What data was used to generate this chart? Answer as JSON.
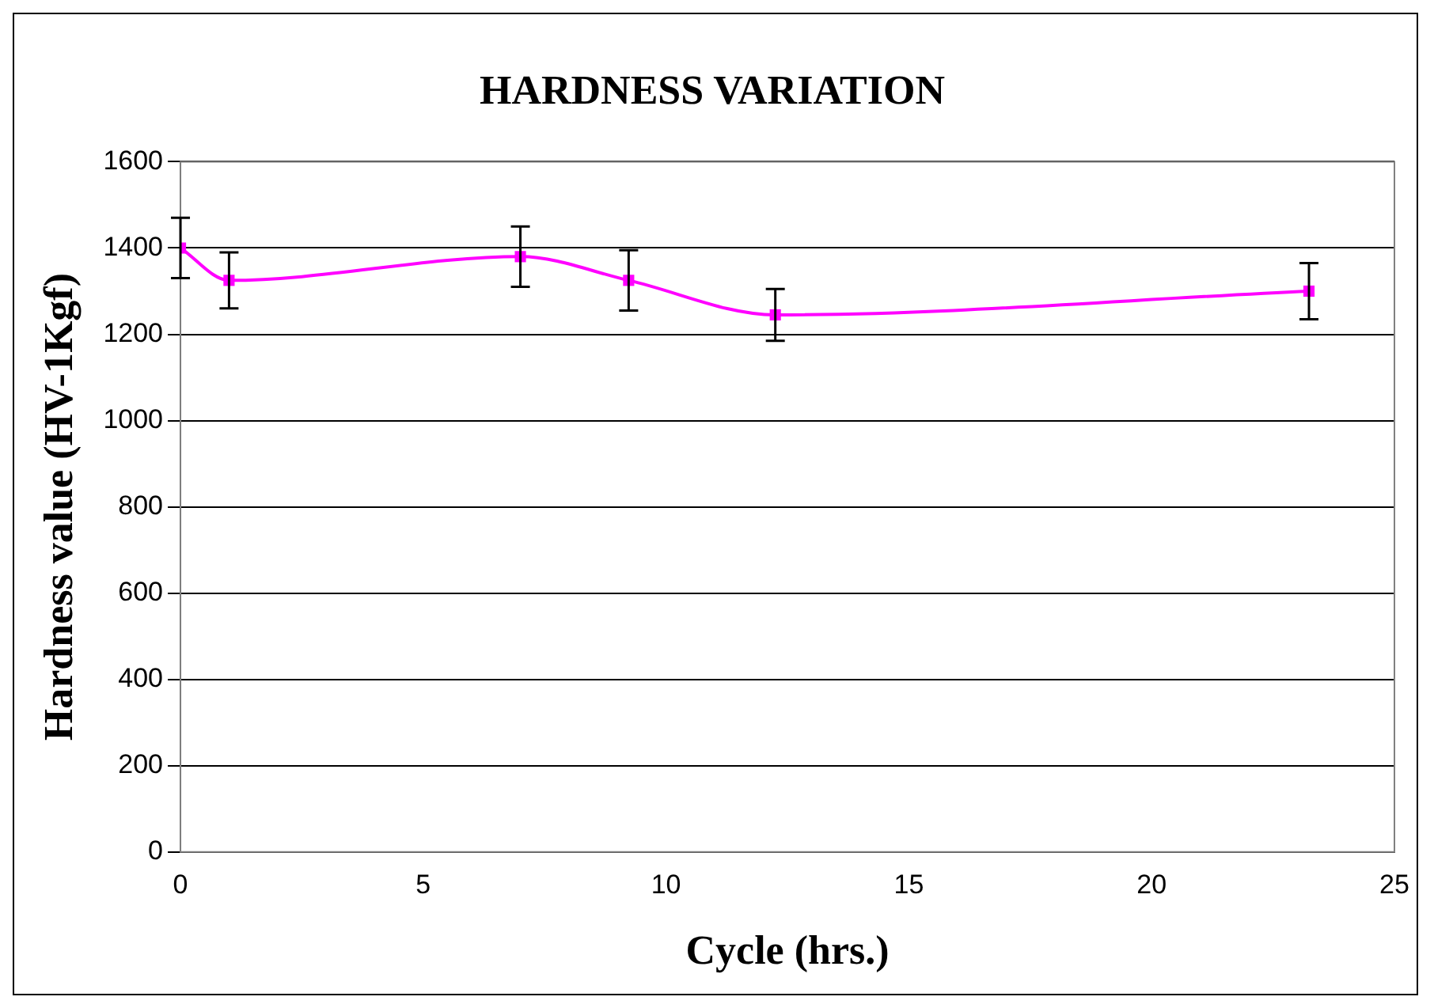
{
  "chart_data": {
    "type": "line",
    "title": "HARDNESS VARIATION",
    "xlabel": "Cycle (hrs.)",
    "ylabel": "Hardness value (HV-1Kgf)",
    "x": [
      0,
      1,
      7,
      9.23,
      12.25,
      23.24
    ],
    "series": [
      {
        "color": "#ff00ff",
        "values": [
          1400,
          1325,
          1380,
          1325,
          1245,
          1300
        ],
        "errors": [
          70,
          65,
          70,
          70,
          60,
          65
        ]
      }
    ],
    "xlim": [
      0,
      25
    ],
    "xticks": [
      0,
      5,
      10,
      15,
      20,
      25
    ],
    "ylim": [
      0,
      1600
    ],
    "yticks": [
      0,
      200,
      400,
      600,
      800,
      1000,
      1200,
      1400,
      1600
    ],
    "grid": "y",
    "legend": false,
    "marker": "square",
    "line_style": "solid"
  }
}
